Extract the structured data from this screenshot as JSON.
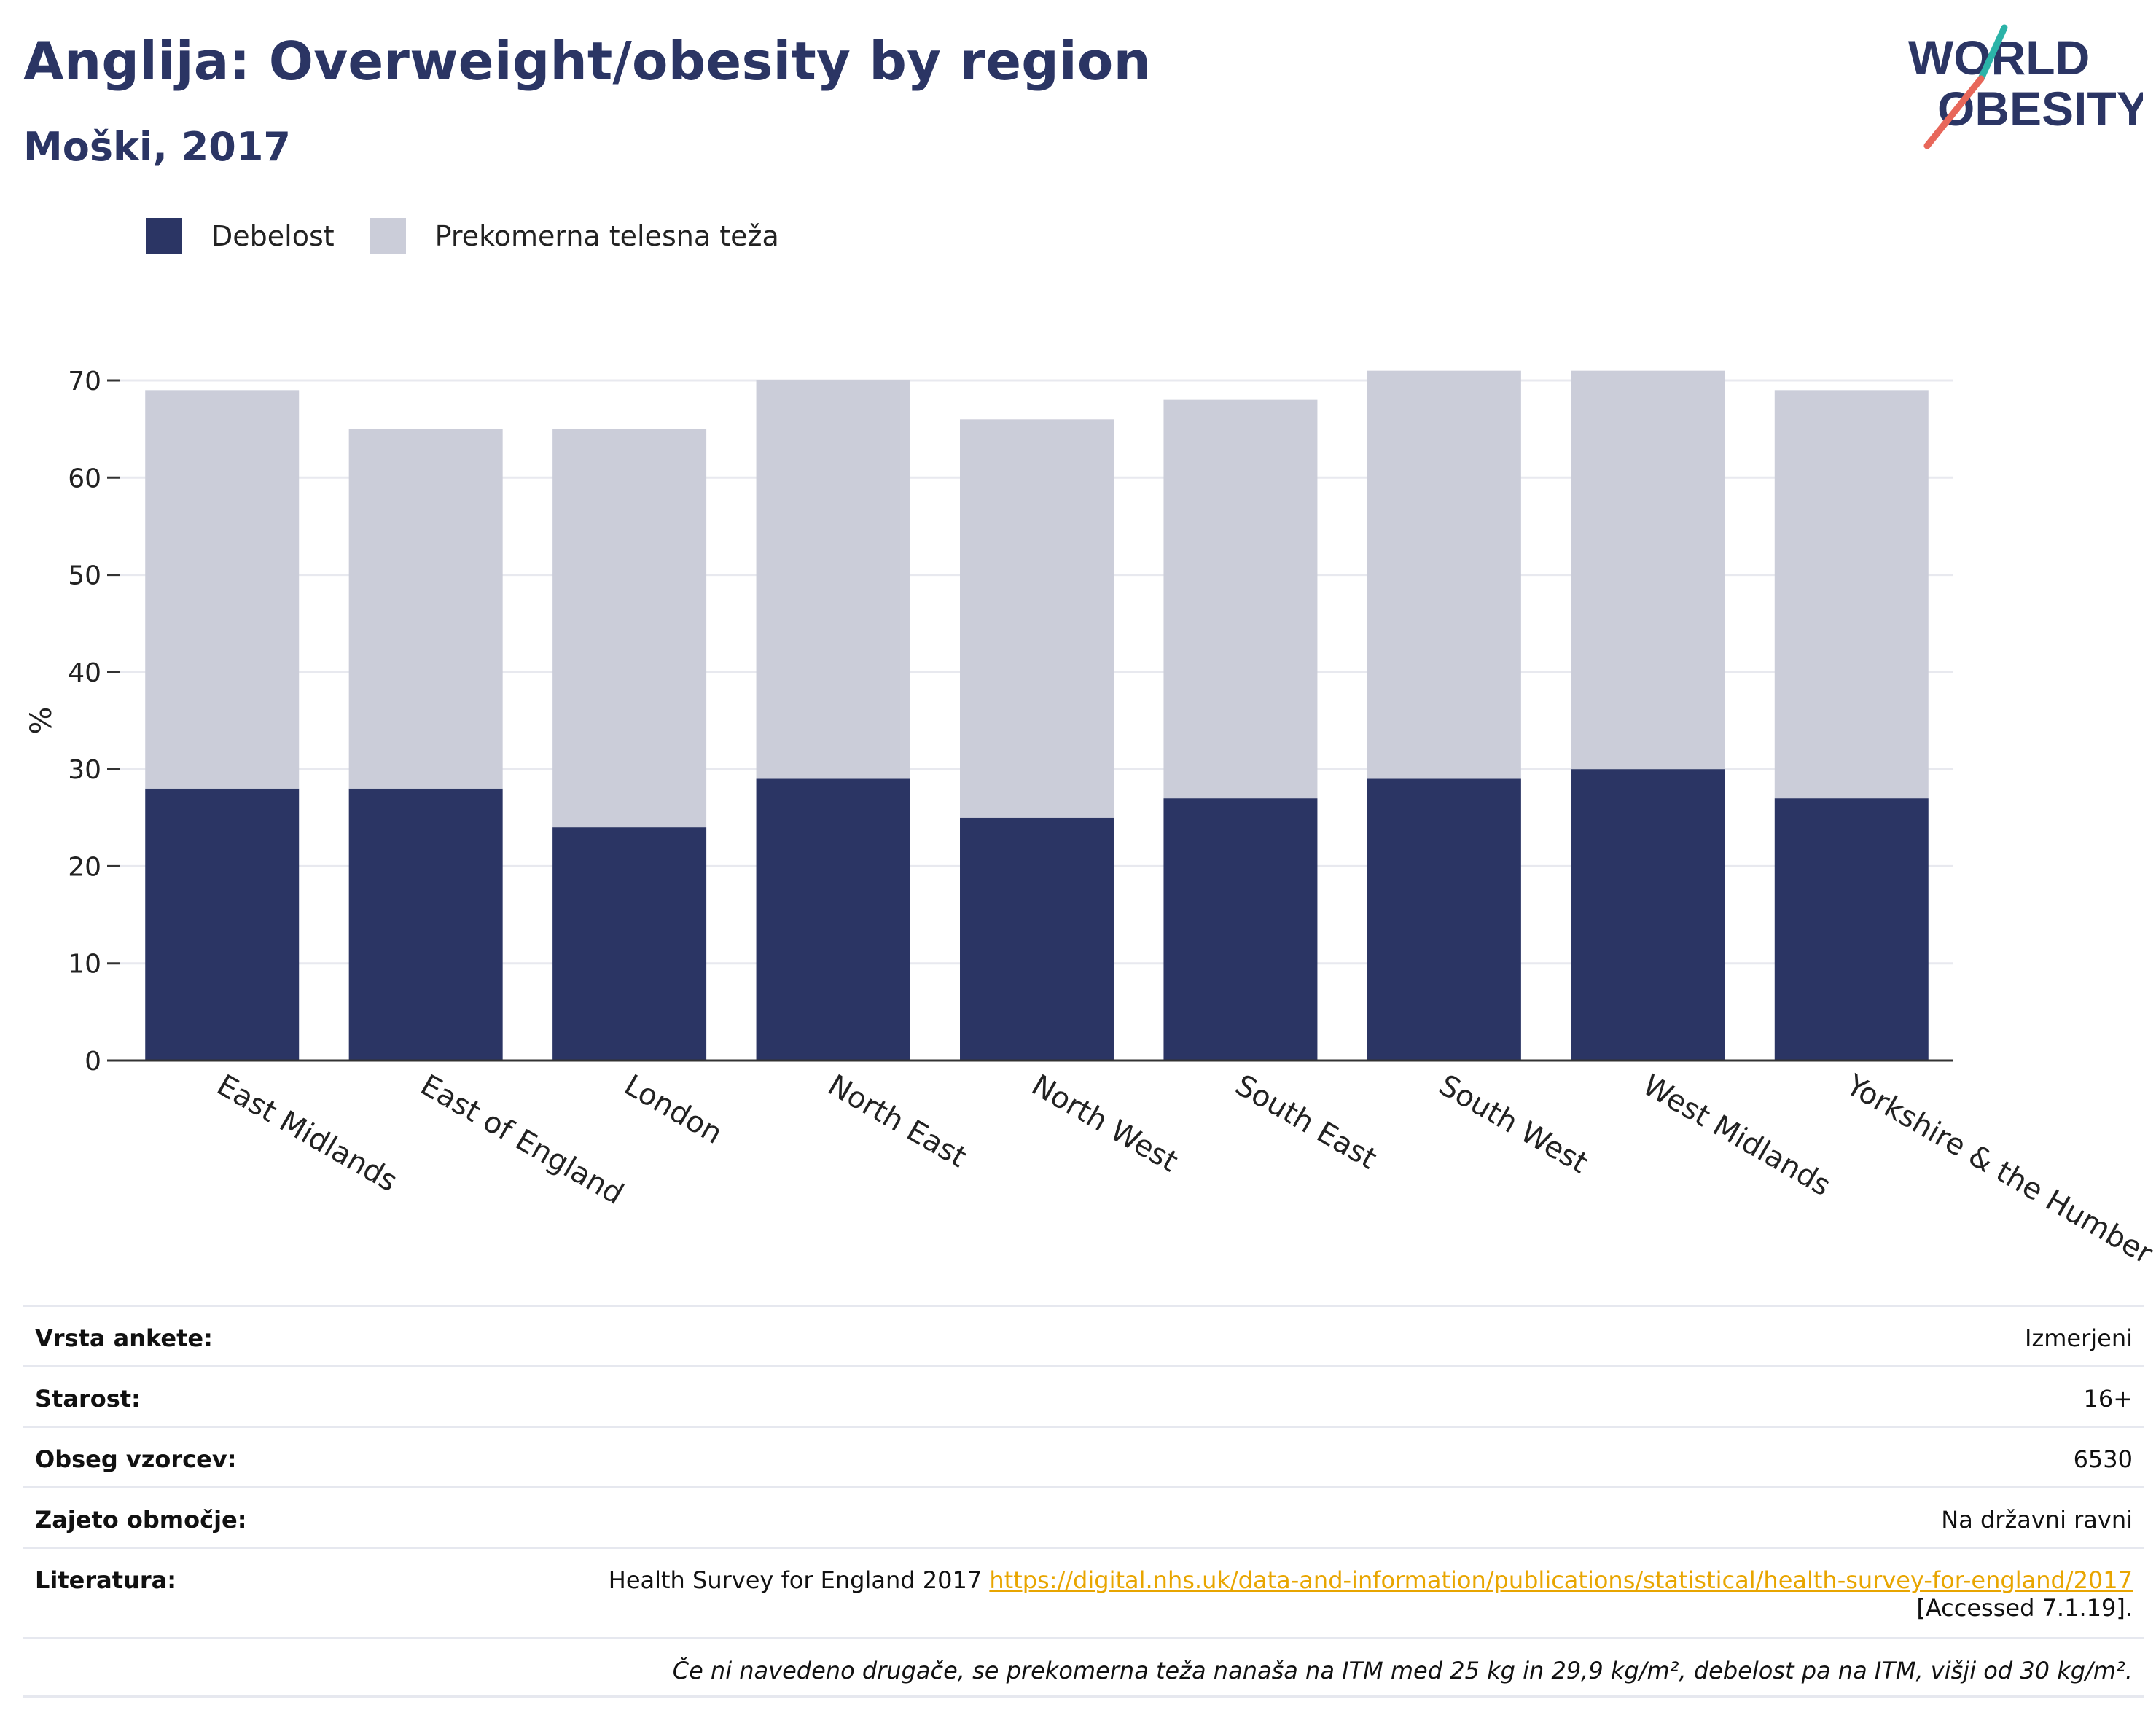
{
  "header": {
    "title": "Anglija: Overweight/obesity by region",
    "subtitle": "Moški, 2017"
  },
  "logo": {
    "line1": "WORLD",
    "line2": "OBESITY",
    "colors": {
      "navy": "#2b3564",
      "teal": "#2bb3a8",
      "coral": "#e8675a"
    }
  },
  "legend": [
    {
      "label": "Debelost",
      "color": "#2b3564"
    },
    {
      "label": "Prekomerna telesna teža",
      "color": "#cbcdd9"
    }
  ],
  "chart_data": {
    "type": "bar",
    "stacked": true,
    "categories": [
      "East Midlands",
      "East of England",
      "London",
      "North East",
      "North West",
      "South East",
      "South West",
      "West Midlands",
      "Yorkshire & the Humber"
    ],
    "series": [
      {
        "name": "Debelost",
        "color": "#2b3564",
        "values": [
          28,
          28,
          24,
          29,
          25,
          27,
          29,
          30,
          27
        ]
      },
      {
        "name": "Prekomerna telesna teža",
        "color": "#cbcdd9",
        "values": [
          41,
          37,
          41,
          41,
          41,
          41,
          42,
          41,
          42
        ]
      }
    ],
    "ylabel": "%",
    "ylim": [
      0,
      70
    ],
    "yticks": [
      0,
      10,
      20,
      30,
      40,
      50,
      60,
      70
    ],
    "grid": true
  },
  "meta": {
    "rows": [
      {
        "label": "Vrsta ankete:",
        "value": "Izmerjeni"
      },
      {
        "label": "Starost:",
        "value": "16+"
      },
      {
        "label": "Obseg vzorcev:",
        "value": "6530"
      },
      {
        "label": "Zajeto območje:",
        "value": "Na državni ravni"
      }
    ],
    "reference": {
      "label": "Literatura:",
      "text": "Health Survey for England 2017 ",
      "link": "https://digital.nhs.uk/data-and-information/publications/statistical/health-survey-for-england/2017",
      "accessed": "[Accessed 7.1.19]."
    },
    "footnote": "Če ni navedeno drugače, se prekomerna teža nanaša na ITM med 25 kg in 29,9 kg/m², debelost pa na ITM, višji od 30 kg/m²."
  }
}
